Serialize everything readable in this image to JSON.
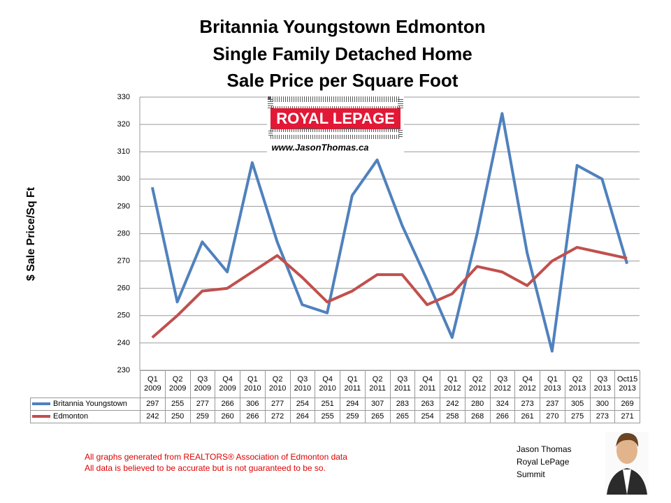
{
  "chart_data": {
    "type": "line",
    "title": [
      "Britannia Youngstown Edmonton",
      "Single Family Detached Home",
      "Sale Price per Square Foot"
    ],
    "y_label": "$ Sale Price/Sq Ft",
    "categories": [
      "Q1 2009",
      "Q2 2009",
      "Q3 2009",
      "Q4 2009",
      "Q1 2010",
      "Q2 2010",
      "Q3 2010",
      "Q4 2010",
      "Q1 2011",
      "Q2 2011",
      "Q3 2011",
      "Q4 2011",
      "Q1 2012",
      "Q2 2012",
      "Q3 2012",
      "Q4 2012",
      "Q1 2013",
      "Q2 2013",
      "Q3 2013",
      "Oct15 2013"
    ],
    "series": [
      {
        "name": "Britannia Youngstown",
        "color": "#4f81bd",
        "values": [
          297,
          255,
          277,
          266,
          306,
          277,
          254,
          251,
          294,
          307,
          283,
          263,
          242,
          280,
          324,
          273,
          237,
          305,
          300,
          269
        ]
      },
      {
        "name": "Edmonton",
        "color": "#c0504d",
        "values": [
          242,
          250,
          259,
          260,
          266,
          272,
          264,
          255,
          259,
          265,
          265,
          254,
          258,
          268,
          266,
          261,
          270,
          275,
          273,
          271
        ]
      }
    ],
    "ylim": [
      230,
      330
    ],
    "yticks": [
      230,
      240,
      250,
      260,
      270,
      280,
      290,
      300,
      310,
      320,
      330
    ],
    "grid": true
  },
  "logo": {
    "brand": "ROYAL LEPAGE",
    "url": "www.JasonThomas.ca"
  },
  "notes": [
    "All graphs generated from REALTORS® Association of Edmonton data",
    "All data is believed to be accurate but is not guaranteed to be so."
  ],
  "signature": [
    "Jason Thomas",
    "Royal LePage",
    "Summit"
  ]
}
